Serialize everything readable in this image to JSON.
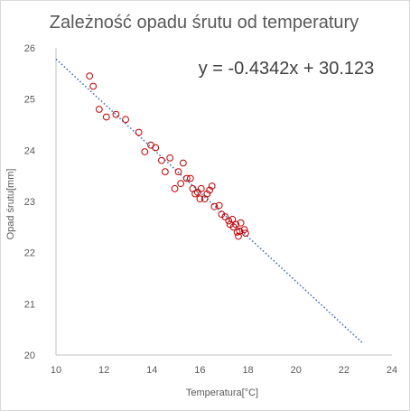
{
  "chart_data": {
    "type": "scatter",
    "title": "Zależność opadu śrutu od temperatury",
    "xlabel": "Temperatura[°C]",
    "ylabel": "Opad śrutu[mm]",
    "xlim": [
      10,
      24
    ],
    "ylim": [
      20,
      26
    ],
    "x_ticks": [
      10,
      12,
      14,
      16,
      18,
      20,
      22,
      24
    ],
    "y_ticks": [
      20,
      21,
      22,
      23,
      24,
      25,
      26
    ],
    "grid": false,
    "legend": "none",
    "trendline": {
      "type": "linear",
      "slope": -0.4342,
      "intercept": 30.123,
      "x_range": [
        10,
        22.8
      ],
      "style": "dotted",
      "color": "#4472c4",
      "equation_label": "y = -0.4342x + 30.123"
    },
    "series": [
      {
        "marker": "open-circle",
        "color": "#c00000",
        "points": [
          [
            11.4,
            25.45
          ],
          [
            11.55,
            25.25
          ],
          [
            11.8,
            24.8
          ],
          [
            12.1,
            24.65
          ],
          [
            12.5,
            24.7
          ],
          [
            12.9,
            24.6
          ],
          [
            13.45,
            24.35
          ],
          [
            13.7,
            23.97
          ],
          [
            13.95,
            24.1
          ],
          [
            14.15,
            24.05
          ],
          [
            14.4,
            23.8
          ],
          [
            14.55,
            23.58
          ],
          [
            14.75,
            23.85
          ],
          [
            14.95,
            23.25
          ],
          [
            15.1,
            23.58
          ],
          [
            15.2,
            23.35
          ],
          [
            15.3,
            23.75
          ],
          [
            15.45,
            23.45
          ],
          [
            15.6,
            23.45
          ],
          [
            15.7,
            23.25
          ],
          [
            15.8,
            23.15
          ],
          [
            15.9,
            23.18
          ],
          [
            16.0,
            23.05
          ],
          [
            16.05,
            23.25
          ],
          [
            16.2,
            23.05
          ],
          [
            16.3,
            23.15
          ],
          [
            16.4,
            23.22
          ],
          [
            16.5,
            23.3
          ],
          [
            16.6,
            22.9
          ],
          [
            16.8,
            22.92
          ],
          [
            16.9,
            22.75
          ],
          [
            17.05,
            22.7
          ],
          [
            17.2,
            22.62
          ],
          [
            17.25,
            22.55
          ],
          [
            17.35,
            22.65
          ],
          [
            17.4,
            22.5
          ],
          [
            17.5,
            22.55
          ],
          [
            17.55,
            22.4
          ],
          [
            17.6,
            22.32
          ],
          [
            17.65,
            22.42
          ],
          [
            17.7,
            22.58
          ],
          [
            17.85,
            22.45
          ],
          [
            17.9,
            22.38
          ]
        ]
      }
    ]
  }
}
